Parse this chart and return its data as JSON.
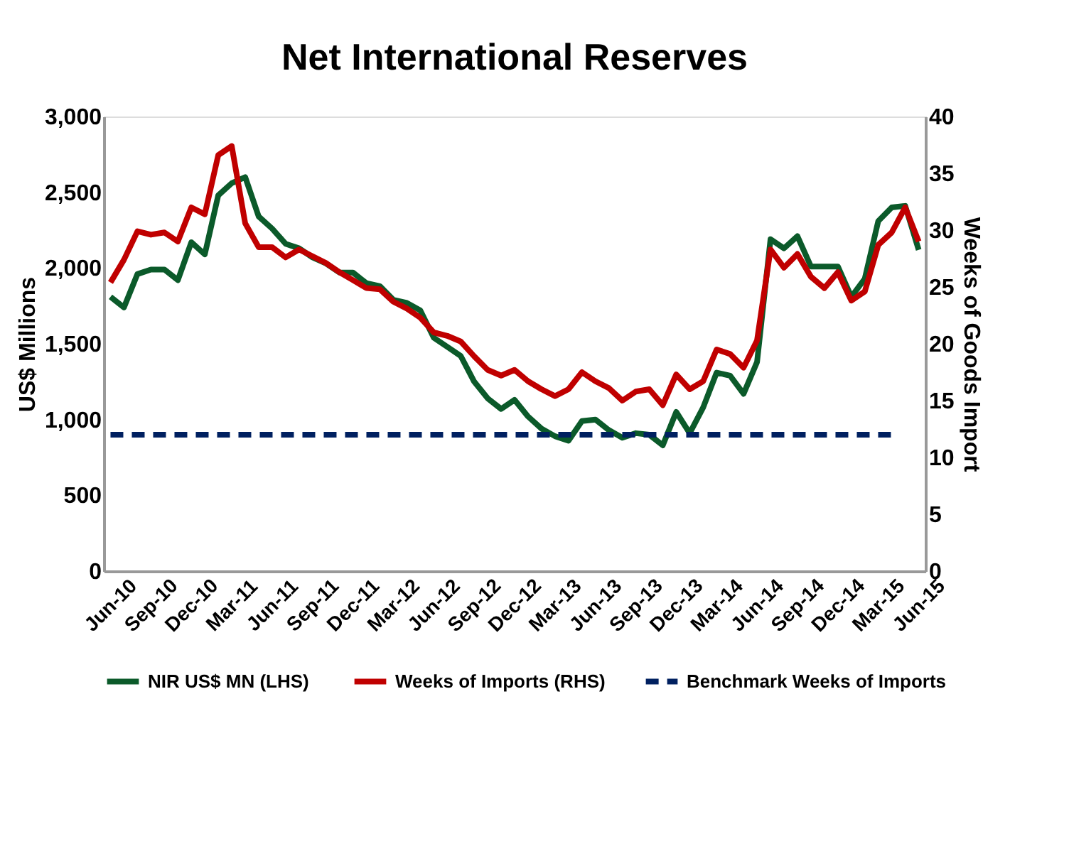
{
  "chart_data": {
    "type": "line",
    "title": "Net International Reserves",
    "categories": [
      "Jun-10",
      null,
      null,
      "Sep-10",
      null,
      null,
      "Dec-10",
      null,
      null,
      "Mar-11",
      null,
      null,
      "Jun-11",
      null,
      null,
      "Sep-11",
      null,
      null,
      "Dec-11",
      null,
      null,
      "Mar-12",
      null,
      null,
      "Jun-12",
      null,
      null,
      "Sep-12",
      null,
      null,
      "Dec-12",
      null,
      null,
      "Mar-13",
      null,
      null,
      "Jun-13",
      null,
      null,
      "Sep-13",
      null,
      null,
      "Dec-13",
      null,
      null,
      "Mar-14",
      null,
      null,
      "Jun-14",
      null,
      null,
      "Sep-14",
      null,
      null,
      "Dec-14",
      null,
      null,
      "Mar-15",
      null,
      null,
      "Jun-15"
    ],
    "ylabel": "US$ Millions",
    "y2label": "Weeks of Goods Import",
    "ylim": [
      0,
      3000
    ],
    "yticks": [
      {
        "value": 0,
        "label": "0"
      },
      {
        "value": 500,
        "label": "500"
      },
      {
        "value": 1000,
        "label": "1,000"
      },
      {
        "value": 1500,
        "label": "1,500"
      },
      {
        "value": 2000,
        "label": "2,000"
      },
      {
        "value": 2500,
        "label": "2,500"
      },
      {
        "value": 3000,
        "label": "3,000"
      }
    ],
    "y2lim": [
      0,
      40
    ],
    "y2ticks": [
      0,
      5,
      10,
      15,
      20,
      25,
      30,
      35,
      40
    ],
    "grid": false,
    "legend": "bottom",
    "marker": "none",
    "series": [
      {
        "name": "NIR US$ MN  (LHS)",
        "color": "#0b5a2a",
        "line_style": "solid",
        "values": [
          1810,
          1740,
          1960,
          1990,
          1990,
          1920,
          2170,
          2090,
          2480,
          2560,
          2600,
          2340,
          2260,
          2160,
          2130,
          2070,
          2030,
          1970,
          1970,
          1900,
          1880,
          1790,
          1770,
          1720,
          1540,
          1480,
          1420,
          1250,
          1140,
          1070,
          1130,
          1020,
          940,
          890,
          860,
          990,
          1000,
          930,
          880,
          910,
          900,
          830,
          1050,
          910,
          1080,
          1310,
          1290,
          1170,
          1380,
          2190,
          2130,
          2210,
          2010,
          2010,
          2010,
          1810,
          1930,
          2310,
          2400,
          2410,
          2120
        ]
      },
      {
        "name": "Weeks of Imports (RHS)",
        "color": "#c00000",
        "axis": "y2",
        "line_style": "solid",
        "values": [
          25.4,
          27.4,
          29.9,
          29.6,
          29.8,
          29.0,
          32.0,
          31.4,
          36.6,
          37.4,
          30.6,
          28.5,
          28.5,
          27.6,
          28.3,
          27.7,
          27.1,
          26.3,
          25.6,
          24.9,
          24.8,
          23.7,
          23.1,
          22.3,
          21.0,
          20.7,
          20.2,
          18.9,
          17.7,
          17.2,
          17.7,
          16.7,
          16.0,
          15.4,
          16.0,
          17.5,
          16.7,
          16.1,
          15.0,
          15.8,
          16.0,
          14.6,
          17.3,
          16.0,
          16.7,
          19.5,
          19.1,
          17.9,
          20.3,
          28.3,
          26.7,
          27.9,
          25.9,
          24.9,
          26.3,
          23.8,
          24.6,
          28.7,
          29.8,
          32.0,
          29.0
        ]
      },
      {
        "name": "Benchmark Weeks of Imports",
        "color": "#002060",
        "axis": "y2",
        "line_style": "dashed",
        "values": [
          12,
          12,
          12,
          12,
          12,
          12,
          12,
          12,
          12,
          12,
          12,
          12,
          12,
          12,
          12,
          12,
          12,
          12,
          12,
          12,
          12,
          12,
          12,
          12,
          12,
          12,
          12,
          12,
          12,
          12,
          12,
          12,
          12,
          12,
          12,
          12,
          12,
          12,
          12,
          12,
          12,
          12,
          12,
          12,
          12,
          12,
          12,
          12,
          12,
          12,
          12,
          12,
          12,
          12,
          12,
          12,
          12,
          12,
          12,
          null,
          null
        ]
      }
    ]
  }
}
